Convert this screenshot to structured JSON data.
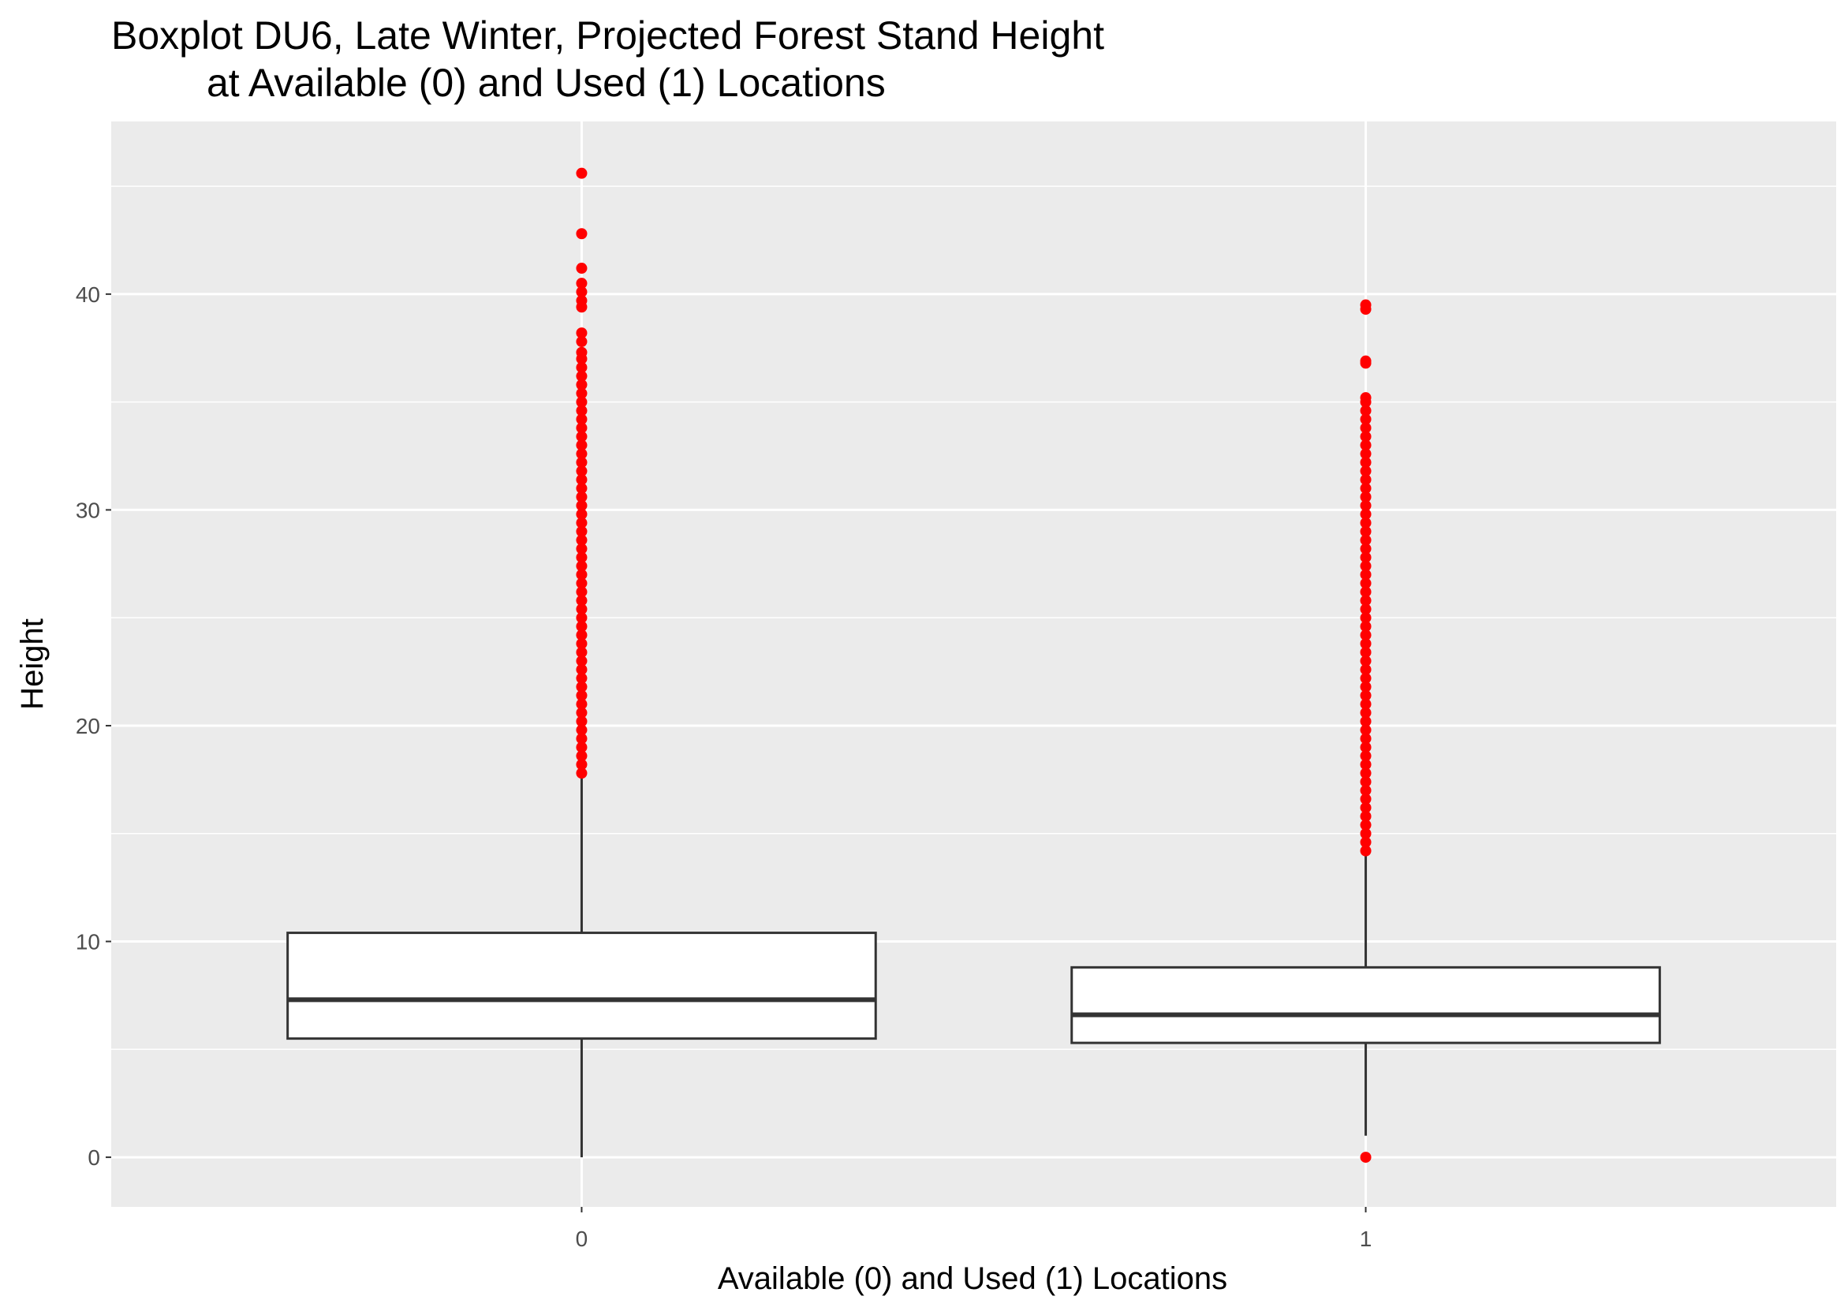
{
  "chart_data": {
    "type": "boxplot",
    "title": [
      "Boxplot DU6, Late Winter, Projected Forest Stand Height",
      "at Available (0) and Used (1) Locations"
    ],
    "x_label": "Available (0) and Used (1) Locations",
    "y_label": "Height",
    "categories": [
      "0",
      "1"
    ],
    "boxes": [
      {
        "whisker_low": 0,
        "q1": 5.5,
        "median": 7.3,
        "q3": 10.4,
        "whisker_high": 17.7,
        "outliers": [
          17.8,
          18.2,
          18.6,
          19,
          19.4,
          19.8,
          20.2,
          20.6,
          21,
          21.4,
          21.8,
          22.2,
          22.6,
          23,
          23.4,
          23.8,
          24.2,
          24.6,
          25,
          25.4,
          25.8,
          26.2,
          26.6,
          27,
          27.4,
          27.8,
          28.2,
          28.6,
          29,
          29.4,
          29.8,
          30.2,
          30.6,
          31,
          31.4,
          31.8,
          32.2,
          32.6,
          33,
          33.4,
          33.8,
          34.2,
          34.6,
          35,
          35.4,
          35.8,
          36.2,
          36.6,
          37,
          37.3,
          37.8,
          38.2,
          39.4,
          39.7,
          40.1,
          40.5,
          41.2,
          42.8,
          45.6
        ]
      },
      {
        "whisker_low": 1.0,
        "q1": 5.3,
        "median": 6.6,
        "q3": 8.8,
        "whisker_high": 14.0,
        "outliers": [
          0,
          14.2,
          14.6,
          15,
          15.4,
          15.8,
          16.2,
          16.6,
          17,
          17.4,
          17.8,
          18.2,
          18.6,
          19,
          19.4,
          19.8,
          20.2,
          20.6,
          21,
          21.4,
          21.8,
          22.2,
          22.6,
          23,
          23.4,
          23.8,
          24.2,
          24.6,
          25,
          25.4,
          25.8,
          26.2,
          26.6,
          27,
          27.4,
          27.8,
          28.2,
          28.6,
          29,
          29.4,
          29.8,
          30.2,
          30.6,
          31,
          31.4,
          31.8,
          32.2,
          32.6,
          33,
          33.4,
          33.8,
          34.2,
          34.6,
          35,
          35.2,
          36.8,
          36.9,
          39.3,
          39.5
        ]
      }
    ],
    "outlier_color": "#ff0000",
    "box_fill": "#ffffff",
    "ylim": [
      -2.3,
      48.0
    ],
    "yticks": [
      0,
      10,
      20,
      30,
      40
    ],
    "minor_yticks": [
      5,
      15,
      25,
      35,
      45
    ],
    "grid": true
  }
}
